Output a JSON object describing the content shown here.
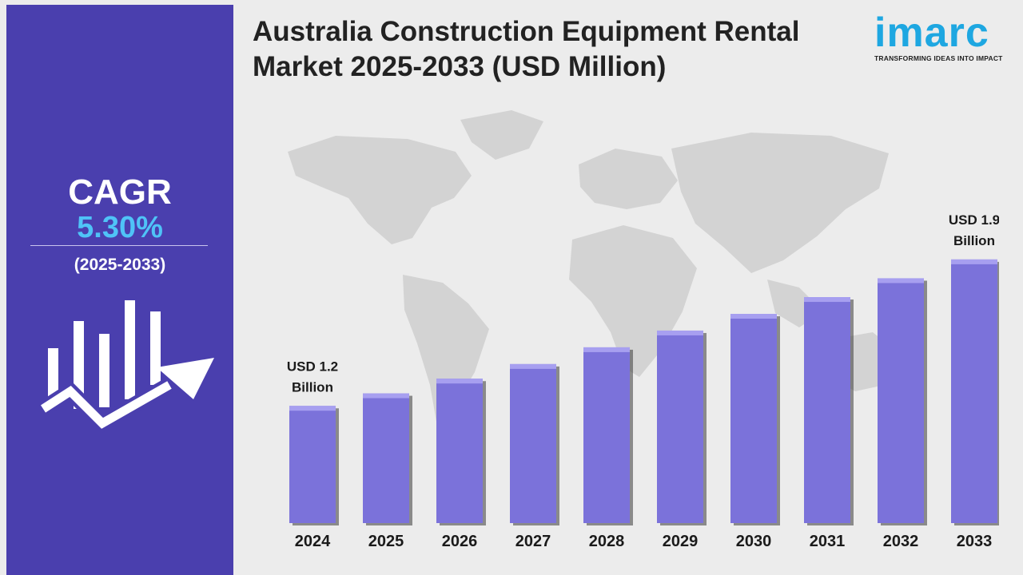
{
  "header": {
    "title_line1": "Australia Construction Equipment Rental",
    "title_line2": "Market 2025-2033 (USD Million)"
  },
  "logo": {
    "wordmark": "imarc",
    "tagline": "TRANSFORMING IDEAS INTO IMPACT"
  },
  "sidebar": {
    "cagr_label": "CAGR",
    "cagr_value": "5.30%",
    "period": "(2025-2033)",
    "icon": "growth-chart-arrow-icon"
  },
  "colors": {
    "sidebar": "#4a3fae",
    "bar": "#7b72da",
    "bar_top": "#a79ff0",
    "cagr_value": "#4fc3f7",
    "logo": "#1ea7e1",
    "map": "#d3d3d3"
  },
  "chart_data": {
    "type": "bar",
    "title": "Australia Construction Equipment Rental Market 2025-2033 (USD Million)",
    "categories": [
      "2024",
      "2025",
      "2026",
      "2027",
      "2028",
      "2029",
      "2030",
      "2031",
      "2032",
      "2033"
    ],
    "values": [
      1.2,
      1.26,
      1.33,
      1.4,
      1.48,
      1.56,
      1.64,
      1.72,
      1.81,
      1.9
    ],
    "annotations": [
      {
        "category": "2024",
        "line1": "USD 1.2",
        "line2": "Billion"
      },
      {
        "category": "2033",
        "line1": "USD 1.9",
        "line2": "Billion"
      }
    ],
    "xlabel": "",
    "ylabel": "",
    "grid": false,
    "legend": "none"
  }
}
